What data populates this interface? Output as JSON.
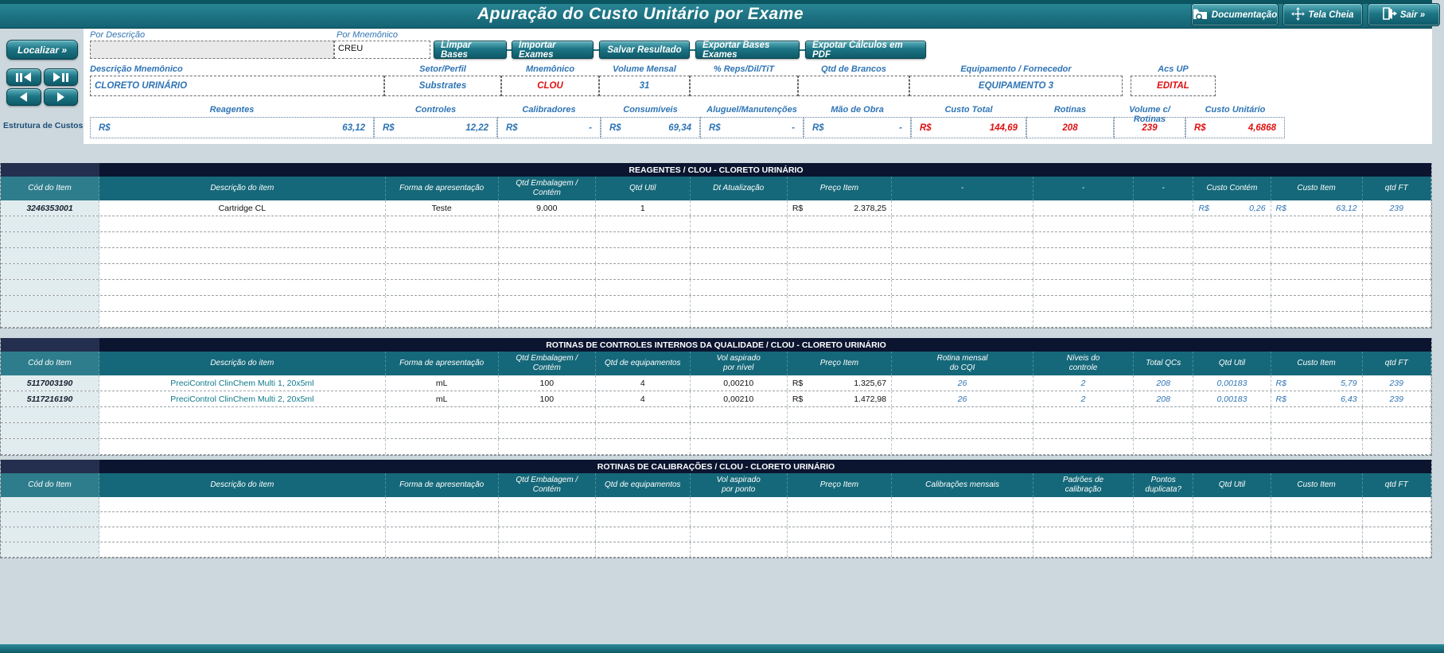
{
  "colors": {
    "teal": "#1d7585",
    "navy_title": "#0b1530",
    "header_teal": "#156879",
    "label_blue": "#2e74b5",
    "value_red": "#e01010",
    "desc_teal": "#0f7a8a"
  },
  "header": {
    "title": "Apuração do Custo Unitário por Exame",
    "buttons": [
      {
        "label": "Documentação",
        "icon": "folder-search-icon"
      },
      {
        "label": "Tela Cheia",
        "icon": "fullscreen-arrows-icon"
      },
      {
        "label": "Sair »",
        "icon": "exit-door-icon"
      }
    ]
  },
  "search": {
    "por_descricao_label": "Por Descrição",
    "por_descricao_value": "",
    "por_mnemonico_label": "Por Mnemônico",
    "por_mnemonico_value": "CREU",
    "localizar_label": "Localizar »",
    "nav_buttons": [
      {
        "icon": "step-first-icon"
      },
      {
        "icon": "step-last-icon"
      },
      {
        "icon": "previous-icon"
      },
      {
        "icon": "next-icon"
      }
    ]
  },
  "actions": [
    "Limpar Bases",
    "Importar Exames",
    "Salvar Resultado",
    "Exportar Bases Exames",
    "Expotar Cálculos em PDF"
  ],
  "exam_fields": [
    {
      "label": "Descrição Mnemônico",
      "value": "CLORETO URINÁRIO",
      "color": "blue"
    },
    {
      "label": "Setor/Perfil",
      "value": "Substrates",
      "color": "blue"
    },
    {
      "label": "Mnemônico",
      "value": "CLOU",
      "color": "red"
    },
    {
      "label": "Volume Mensal",
      "value": "31",
      "color": "blue"
    },
    {
      "label": "% Reps/Dil/TiT",
      "value": "",
      "color": "blue"
    },
    {
      "label": "Qtd de Brancos",
      "value": "",
      "color": "blue"
    },
    {
      "label": "Equipamento / Fornecedor",
      "value": "EQUIPAMENTO 3",
      "color": "blue"
    },
    {
      "label": "Acs UP",
      "value": "EDITAL",
      "color": "red"
    }
  ],
  "custos": {
    "section_label": "Estrutura de Custos :",
    "items": [
      {
        "label": "Reagentes",
        "prefix": "R$",
        "value": "63,12",
        "color": "blue"
      },
      {
        "label": "Controles",
        "prefix": "R$",
        "value": "12,22",
        "color": "blue"
      },
      {
        "label": "Calibradores",
        "prefix": "R$",
        "value": "-",
        "color": "blue"
      },
      {
        "label": "Consumíveis",
        "prefix": "R$",
        "value": "69,34",
        "color": "blue"
      },
      {
        "label": "Aluguel/Manutenções",
        "prefix": "R$",
        "value": "-",
        "color": "blue"
      },
      {
        "label": "Mão de Obra",
        "prefix": "R$",
        "value": "-",
        "color": "blue"
      },
      {
        "label": "Custo Total",
        "prefix": "R$",
        "value": "144,69",
        "color": "red"
      },
      {
        "label": "Rotinas",
        "prefix": "",
        "value": "208",
        "color": "red"
      },
      {
        "label": "Volume c/ Rotinas",
        "prefix": "",
        "value": "239",
        "color": "red"
      },
      {
        "label": "Custo Unitário",
        "prefix": "R$",
        "value": "4,6868",
        "color": "red"
      }
    ]
  },
  "tables": [
    {
      "title": "REAGENTES / CLOU - CLORETO URINÁRIO",
      "columns": [
        "Cód do Item",
        "Descrição do item",
        "Forma de apresentação",
        "Qtd Embalagem /\nContém",
        "Qtd Util",
        "Dt Atualização",
        "Preço Item",
        "-",
        "-",
        "-",
        "Custo Contém",
        "Custo Item",
        "qtd FT"
      ],
      "rows": [
        [
          "3246353001",
          "Cartridge CL",
          "Teste",
          "9.000",
          "1",
          "",
          {
            "p": "R$",
            "v": "2.378,25"
          },
          "",
          "",
          "",
          {
            "p": "R$",
            "v": "0,26"
          },
          {
            "p": "R$",
            "v": "63,12"
          },
          "239"
        ]
      ],
      "empty_rows": 7
    },
    {
      "title": "ROTINAS DE CONTROLES INTERNOS DA QUALIDADE / CLOU - CLORETO URINÁRIO",
      "columns": [
        "Cód do Item",
        "Descrição do item",
        "Forma de apresentação",
        "Qtd Embalagem /\nContém",
        "Qtd de equipamentos",
        "Vol aspirado\npor nível",
        "Preço Item",
        "Rotina mensal\ndo CQI",
        "Níveis do\ncontrole",
        "Total QCs",
        "Qtd Util",
        "Custo Item",
        "qtd FT"
      ],
      "rows": [
        [
          "5117003190",
          "PreciControl ClinChem Multi 1, 20x5ml",
          "mL",
          "100",
          "4",
          "0,00210",
          {
            "p": "R$",
            "v": "1.325,67"
          },
          "26",
          "2",
          "208",
          "0,00183",
          {
            "p": "R$",
            "v": "5,79"
          },
          "239"
        ],
        [
          "5117216190",
          "PreciControl ClinChem Multi 2, 20x5ml",
          "mL",
          "100",
          "4",
          "0,00210",
          {
            "p": "R$",
            "v": "1.472,98"
          },
          "26",
          "2",
          "208",
          "0,00183",
          {
            "p": "R$",
            "v": "6,43"
          },
          "239"
        ]
      ],
      "empty_rows": 3
    },
    {
      "title": "ROTINAS DE CALIBRAÇÕES / CLOU - CLORETO URINÁRIO",
      "columns": [
        "Cód do Item",
        "Descrição do item",
        "Forma de apresentação",
        "Qtd Embalagem /\nContém",
        "Qtd de equipamentos",
        "Vol aspirado\npor ponto",
        "Preço Item",
        "Calibrações mensais",
        "Padrões de\ncalibração",
        "Pontos duplicata?",
        "Qtd Util",
        "Custo Item",
        "qtd FT"
      ],
      "rows": [],
      "empty_rows": 4
    }
  ]
}
